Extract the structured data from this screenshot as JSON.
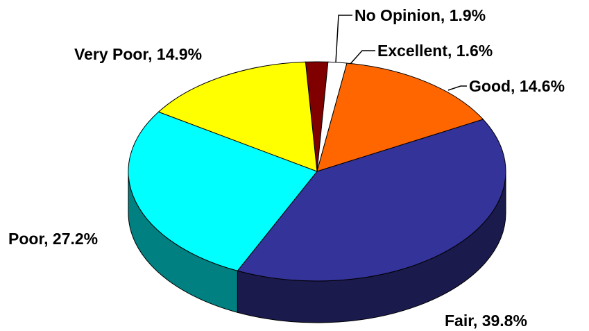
{
  "chart_data": {
    "type": "pie",
    "title": "",
    "slices": [
      {
        "category": "No Opinion",
        "value": 1.9,
        "label": "No Opinion, 1.9%",
        "color": "#800000",
        "side_color": "#400000"
      },
      {
        "category": "Excellent",
        "value": 1.6,
        "label": "Excellent, 1.6%",
        "color": "#ffffff",
        "side_color": "#cccccc"
      },
      {
        "category": "Good",
        "value": 14.6,
        "label": "Good, 14.6%",
        "color": "#ff6600",
        "side_color": "#803300"
      },
      {
        "category": "Fair",
        "value": 39.8,
        "label": "Fair, 39.8%",
        "color": "#333399",
        "side_color": "#1a1a4d"
      },
      {
        "category": "Poor",
        "value": 27.2,
        "label": "Poor, 27.2%",
        "color": "#00ffff",
        "side_color": "#008080"
      },
      {
        "category": "Very Poor",
        "value": 14.9,
        "label": "Very Poor, 14.9%",
        "color": "#ffff00",
        "side_color": "#808000"
      }
    ],
    "unit": "%",
    "legend": "none",
    "data_labels": "outside-with-leaders",
    "style": "3d-pie"
  }
}
